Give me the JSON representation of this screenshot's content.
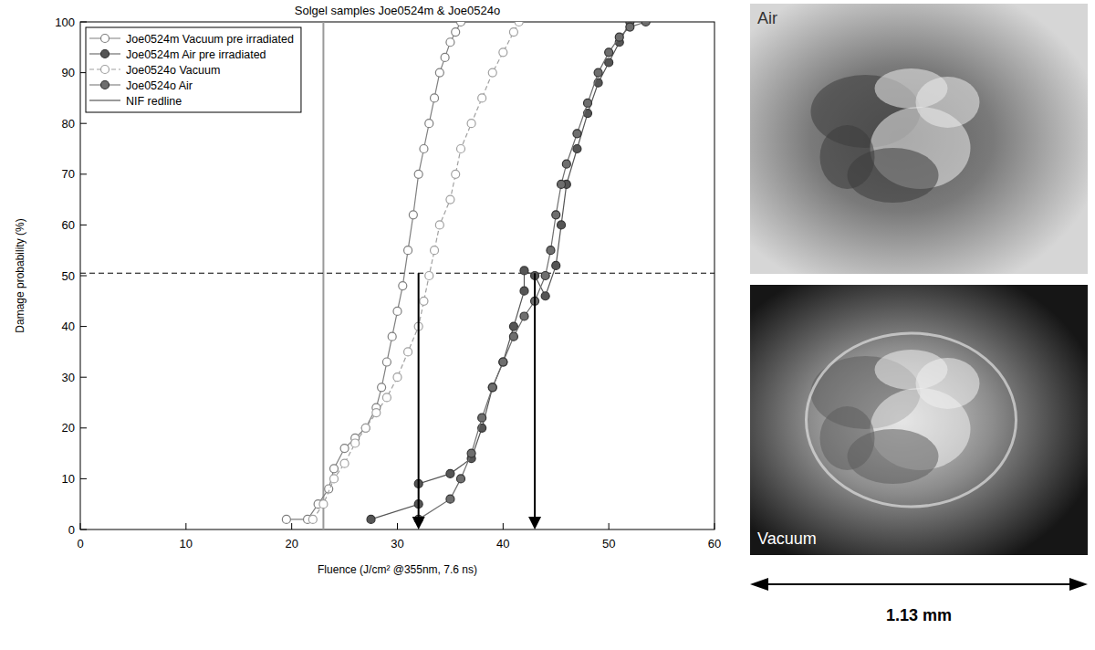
{
  "chart_data": {
    "type": "scatter",
    "title": "Solgel samples Joe0524m & Joe0524o",
    "x_label": "Fluence (J/cm² @355nm, 7.6 ns)",
    "y_label": "Damage probability (%)",
    "xlim": [
      0,
      60
    ],
    "ylim": [
      0,
      100
    ],
    "xticks": [
      0,
      10,
      20,
      30,
      40,
      50,
      60
    ],
    "yticks": [
      0,
      10,
      20,
      30,
      40,
      50,
      60,
      70,
      80,
      90,
      100
    ],
    "grid": false,
    "legend": "top-left",
    "series": [
      {
        "name": "Joe0524m Vacuum pre irradiated",
        "color": "#7f7f7f",
        "marker": "open-circle",
        "line_style": "solid",
        "x": [
          19.5,
          21.5,
          22.5,
          23.5,
          24,
          25,
          26,
          27,
          28,
          28.5,
          29,
          29.5,
          30,
          30.5,
          31,
          31.5,
          32,
          32.5,
          33,
          33.5,
          34,
          34.5,
          35,
          35.5,
          36
        ],
        "values": [
          2,
          2,
          5,
          8,
          12,
          16,
          18,
          20,
          24,
          28,
          33,
          38,
          43,
          48,
          55,
          62,
          70,
          75,
          80,
          85,
          90,
          93,
          96,
          98,
          100
        ]
      },
      {
        "name": "Joe0524m Air pre irradiated",
        "color": "#555555",
        "marker": "filled-circle",
        "line_style": "solid",
        "x": [
          27.5,
          32,
          32,
          35,
          37,
          38,
          39,
          40,
          41,
          42,
          42,
          43,
          44,
          45,
          45.5,
          46,
          47,
          48,
          49,
          50,
          51,
          52
        ],
        "values": [
          2,
          5,
          9,
          11,
          14,
          20,
          28,
          33,
          40,
          47,
          51,
          50,
          46,
          52,
          60,
          68,
          75,
          82,
          88,
          92,
          96,
          100
        ]
      },
      {
        "name": "Joe0524o Vacuum",
        "color": "#a0a0a0",
        "marker": "open-circle",
        "line_style": "dashed",
        "x": [
          22,
          23,
          24,
          25,
          26,
          27,
          28,
          29,
          30,
          31,
          32,
          32.5,
          33,
          33.5,
          34,
          35,
          35.5,
          36,
          37,
          38,
          39,
          40,
          41,
          41.5
        ],
        "values": [
          2,
          5,
          10,
          13,
          17,
          20,
          23,
          26,
          30,
          35,
          40,
          45,
          50,
          55,
          60,
          65,
          70,
          75,
          80,
          85,
          90,
          94,
          98,
          100
        ]
      },
      {
        "name": "Joe0524o Air",
        "color": "#6e6e6e",
        "marker": "filled-circle",
        "line_style": "solid",
        "x": [
          32,
          35,
          36,
          37,
          38,
          39,
          40,
          41,
          42,
          43,
          44,
          44.5,
          45,
          45.5,
          46,
          47,
          48,
          49,
          50,
          51,
          52,
          53.5
        ],
        "values": [
          2,
          6,
          10,
          15,
          22,
          28,
          33,
          38,
          42,
          45,
          50,
          55,
          62,
          68,
          72,
          78,
          84,
          90,
          94,
          97,
          99,
          100
        ]
      }
    ],
    "reference_lines": [
      {
        "name": "NIF redline",
        "axis": "x",
        "value": 23,
        "color": "#9a9a9a"
      }
    ],
    "threshold_line": {
      "y": 50.5,
      "line_style": "dashed",
      "color": "#000000"
    },
    "arrows": [
      {
        "x": 32,
        "from": 50.5,
        "to": 0
      },
      {
        "x": 43,
        "from": 50.5,
        "to": 0
      }
    ]
  },
  "images": [
    {
      "label": "Air"
    },
    {
      "label": "Vacuum"
    }
  ],
  "scale_bar": {
    "label": "1.13 mm"
  }
}
